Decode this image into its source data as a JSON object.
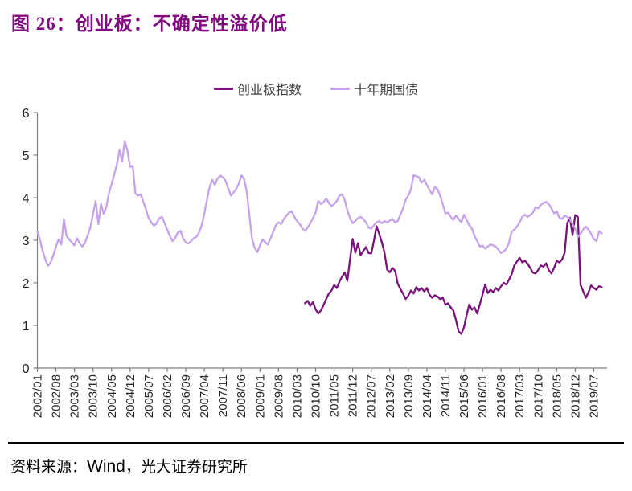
{
  "header": {
    "title": "图 26：创业板：不确定性溢价低",
    "title_color": "#800C80"
  },
  "legend": {
    "items": [
      {
        "label": "创业板指数",
        "color": "#7A137A"
      },
      {
        "label": "十年期国债",
        "color": "#C5A2E9"
      }
    ]
  },
  "footer": {
    "source_prefix": "资料来源：",
    "source_vendor": "Wind",
    "source_suffix": "，光大证券研究所"
  },
  "axes": {
    "axis_color": "#7F7F7F",
    "label_color": "#262626"
  },
  "chart_data": {
    "type": "line",
    "title": "图 26：创业板：不确定性溢价低",
    "xlabel": "",
    "ylabel": "",
    "ylim": [
      0,
      6
    ],
    "y_ticks": [
      0,
      1,
      2,
      3,
      4,
      5,
      6
    ],
    "grid": false,
    "legend_position": "top-center",
    "x_start": "2002/01",
    "x_end": "2019/10",
    "x_tick_interval_months": 7,
    "x_tick_labels": [
      "2002/01",
      "2002/08",
      "2003/03",
      "2003/10",
      "2004/05",
      "2004/12",
      "2005/07",
      "2006/02",
      "2006/09",
      "2007/04",
      "2007/11",
      "2008/06",
      "2009/01",
      "2009/08",
      "2010/03",
      "2010/10",
      "2011/05",
      "2011/12",
      "2012/07",
      "2013/02",
      "2013/09",
      "2014/04",
      "2014/11",
      "2015/06",
      "2016/01",
      "2016/08",
      "2017/03",
      "2017/10",
      "2018/05",
      "2018/12",
      "2019/07"
    ],
    "series": [
      {
        "name": "创业板指数",
        "color": "#7A137A",
        "start": "2010/06",
        "values": [
          1.52,
          1.58,
          1.46,
          1.55,
          1.38,
          1.28,
          1.35,
          1.48,
          1.62,
          1.75,
          1.82,
          1.95,
          1.88,
          2.03,
          2.15,
          2.24,
          2.05,
          2.55,
          3.03,
          2.71,
          2.93,
          2.65,
          2.75,
          2.84,
          2.7,
          2.69,
          2.98,
          3.33,
          3.15,
          2.95,
          2.71,
          2.31,
          2.25,
          2.35,
          2.28,
          1.98,
          1.86,
          1.75,
          1.62,
          1.7,
          1.82,
          1.75,
          1.9,
          1.82,
          1.88,
          1.8,
          1.88,
          1.72,
          1.65,
          1.71,
          1.68,
          1.62,
          1.65,
          1.49,
          1.52,
          1.42,
          1.35,
          1.12,
          0.86,
          0.8,
          0.95,
          1.24,
          1.49,
          1.37,
          1.42,
          1.28,
          1.5,
          1.72,
          1.96,
          1.76,
          1.84,
          1.78,
          1.88,
          1.82,
          1.92,
          2.0,
          1.96,
          2.08,
          2.2,
          2.41,
          2.5,
          2.59,
          2.48,
          2.52,
          2.45,
          2.35,
          2.24,
          2.22,
          2.3,
          2.41,
          2.38,
          2.46,
          2.3,
          2.22,
          2.35,
          2.52,
          2.48,
          2.55,
          2.71,
          3.4,
          3.53,
          3.12,
          3.59,
          3.55,
          1.95,
          1.8,
          1.65,
          1.78,
          1.94,
          1.88,
          1.84,
          1.92,
          1.9
        ]
      },
      {
        "name": "十年期国债",
        "color": "#C5A2E9",
        "start": "2002/01",
        "values": [
          3.2,
          3.0,
          2.75,
          2.55,
          2.4,
          2.48,
          2.65,
          2.85,
          3.02,
          2.9,
          3.5,
          3.1,
          3.02,
          2.95,
          2.88,
          3.05,
          2.92,
          2.85,
          2.95,
          3.12,
          3.3,
          3.62,
          3.92,
          3.38,
          3.85,
          3.62,
          3.78,
          4.1,
          4.32,
          4.55,
          4.78,
          5.12,
          4.85,
          5.33,
          5.1,
          4.72,
          4.75,
          4.1,
          4.05,
          4.08,
          3.9,
          3.72,
          3.52,
          3.42,
          3.34,
          3.4,
          3.52,
          3.55,
          3.4,
          3.25,
          3.1,
          2.98,
          3.05,
          3.18,
          3.22,
          3.05,
          2.95,
          2.92,
          2.98,
          3.05,
          3.08,
          3.18,
          3.35,
          3.62,
          3.95,
          4.25,
          4.42,
          4.3,
          4.45,
          4.52,
          4.48,
          4.4,
          4.22,
          4.05,
          4.12,
          4.2,
          4.32,
          4.52,
          4.45,
          4.15,
          3.6,
          3.05,
          2.82,
          2.72,
          2.88,
          3.02,
          2.95,
          2.9,
          3.05,
          3.2,
          3.35,
          3.42,
          3.38,
          3.5,
          3.58,
          3.65,
          3.68,
          3.55,
          3.45,
          3.38,
          3.28,
          3.22,
          3.3,
          3.4,
          3.52,
          3.65,
          3.92,
          3.85,
          3.9,
          3.98,
          3.88,
          3.8,
          3.85,
          3.92,
          4.05,
          4.08,
          3.95,
          3.7,
          3.52,
          3.4,
          3.45,
          3.52,
          3.55,
          3.5,
          3.42,
          3.3,
          3.27,
          3.35,
          3.42,
          3.45,
          3.4,
          3.45,
          3.42,
          3.46,
          3.5,
          3.42,
          3.45,
          3.6,
          3.75,
          3.95,
          4.05,
          4.2,
          4.53,
          4.5,
          4.48,
          4.35,
          4.42,
          4.3,
          4.18,
          4.08,
          4.25,
          4.2,
          4.05,
          3.85,
          3.63,
          3.65,
          3.55,
          3.48,
          3.58,
          3.5,
          3.42,
          3.6,
          3.48,
          3.35,
          3.28,
          3.1,
          2.98,
          2.85,
          2.88,
          2.8,
          2.85,
          2.9,
          2.88,
          2.85,
          2.78,
          2.7,
          2.74,
          2.8,
          2.95,
          3.2,
          3.25,
          3.32,
          3.42,
          3.55,
          3.6,
          3.55,
          3.59,
          3.65,
          3.78,
          3.75,
          3.83,
          3.88,
          3.9,
          3.85,
          3.75,
          3.63,
          3.68,
          3.53,
          3.5,
          3.58,
          3.55,
          3.5,
          3.38,
          3.27,
          3.08,
          3.15,
          3.25,
          3.32,
          3.25,
          3.15,
          3.03,
          2.98,
          3.21,
          3.16
        ]
      }
    ]
  }
}
